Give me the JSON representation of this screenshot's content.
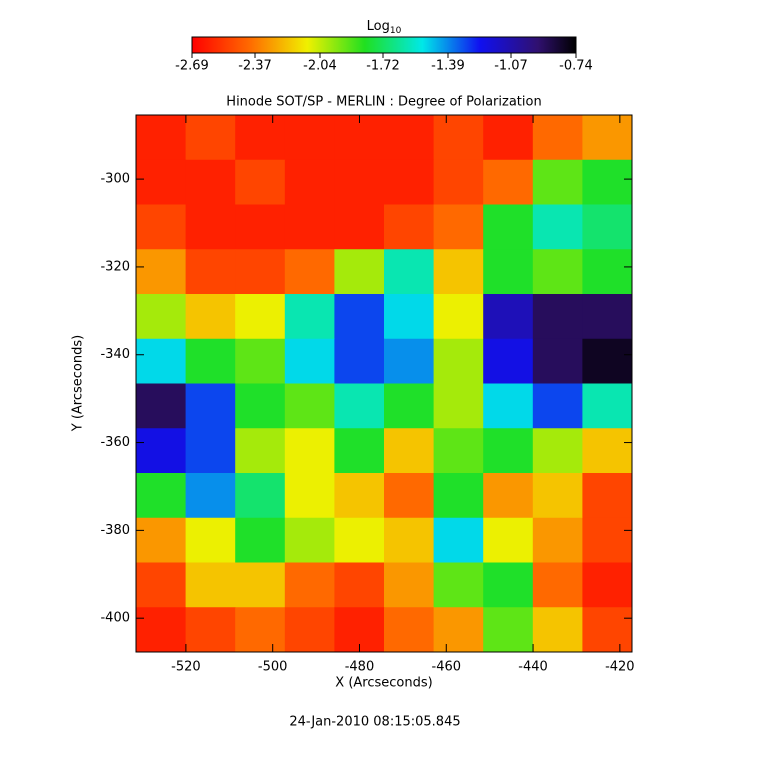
{
  "chart_data": {
    "type": "heatmap",
    "title": "Hinode SOT/SP - MERLIN : Degree of Polarization",
    "colorbar_label": "Log",
    "colorbar_label_sub": "10",
    "clim": [
      -2.69,
      -0.74
    ],
    "cticks": [
      -2.69,
      -2.37,
      -2.04,
      -1.72,
      -1.39,
      -1.07,
      -0.74
    ],
    "x_label": "X (Arcseconds)",
    "y_label": "Y (Arcseconds)",
    "xlim": [
      -531.5,
      -417.2
    ],
    "ylim": [
      -407.7,
      -285.4
    ],
    "xticks": [
      -520,
      -500,
      -480,
      -460,
      -440,
      -420
    ],
    "yticks": [
      -300,
      -320,
      -340,
      -360,
      -380,
      -400
    ],
    "z": [
      [
        -2.6,
        -2.5,
        -2.6,
        -2.6,
        -2.6,
        -2.6,
        -2.5,
        -2.6,
        -2.4,
        -2.3
      ],
      [
        -2.6,
        -2.6,
        -2.5,
        -2.6,
        -2.6,
        -2.6,
        -2.5,
        -2.4,
        -1.9,
        -1.8
      ],
      [
        -2.5,
        -2.6,
        -2.6,
        -2.6,
        -2.6,
        -2.5,
        -2.4,
        -1.8,
        -1.6,
        -1.7
      ],
      [
        -2.3,
        -2.5,
        -2.5,
        -2.4,
        -2.0,
        -1.6,
        -2.2,
        -1.8,
        -1.9,
        -1.8
      ],
      [
        -2.0,
        -2.2,
        -2.1,
        -1.6,
        -1.3,
        -1.5,
        -2.1,
        -1.1,
        -0.9,
        -0.9
      ],
      [
        -1.5,
        -1.8,
        -1.9,
        -1.5,
        -1.3,
        -1.4,
        -2.0,
        -1.2,
        -0.9,
        -0.8
      ],
      [
        -0.9,
        -1.3,
        -1.8,
        -1.9,
        -1.6,
        -1.8,
        -2.0,
        -1.5,
        -1.3,
        -1.6
      ],
      [
        -1.2,
        -1.3,
        -2.0,
        -2.1,
        -1.8,
        -2.2,
        -1.9,
        -1.8,
        -2.0,
        -2.2
      ],
      [
        -1.8,
        -1.4,
        -1.7,
        -2.1,
        -2.2,
        -2.4,
        -1.8,
        -2.3,
        -2.2,
        -2.5
      ],
      [
        -2.3,
        -2.1,
        -1.8,
        -2.0,
        -2.1,
        -2.2,
        -1.5,
        -2.1,
        -2.3,
        -2.5
      ],
      [
        -2.5,
        -2.2,
        -2.2,
        -2.4,
        -2.5,
        -2.3,
        -1.9,
        -1.8,
        -2.4,
        -2.6
      ],
      [
        -2.6,
        -2.5,
        -2.4,
        -2.5,
        -2.6,
        -2.4,
        -2.3,
        -1.9,
        -2.2,
        -2.5
      ]
    ],
    "footer": "24-Jan-2010 08:15:05.845"
  }
}
